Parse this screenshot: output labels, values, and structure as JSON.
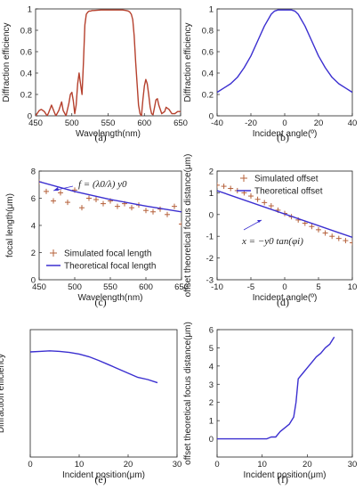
{
  "chart_data": [
    {
      "id": "a",
      "type": "line",
      "panel_label": "(a)",
      "xlabel": "Wavelength(nm)",
      "ylabel": "Diffraction efficiency",
      "xlim": [
        450,
        650
      ],
      "ylim": [
        0,
        1
      ],
      "xticks": [
        450,
        500,
        550,
        600,
        650
      ],
      "yticks": [
        0,
        0.2,
        0.4,
        0.6,
        0.8,
        1
      ],
      "grid": false,
      "series": [
        {
          "color": "#b5402d",
          "x": [
            450,
            455,
            458,
            462,
            466,
            468,
            472,
            476,
            478,
            482,
            486,
            488,
            492,
            496,
            498,
            500,
            502,
            504,
            506,
            508,
            510,
            512,
            514,
            516,
            518,
            520,
            522,
            524,
            526,
            528,
            530,
            540,
            550,
            560,
            570,
            575,
            578,
            580,
            582,
            584,
            586,
            588,
            590,
            592,
            594,
            596,
            598,
            600,
            602,
            604,
            606,
            608,
            610,
            612,
            614,
            616,
            618,
            620,
            624,
            628,
            630,
            634,
            638,
            642,
            646,
            650
          ],
          "y": [
            0,
            0.05,
            0.06,
            0.04,
            0,
            0.03,
            0.1,
            0.03,
            0,
            0.05,
            0.13,
            0.05,
            0,
            0.12,
            0.2,
            0.22,
            0.14,
            0.02,
            0.1,
            0.3,
            0.4,
            0.3,
            0.2,
            0.5,
            0.85,
            0.95,
            0.97,
            0.98,
            0.98,
            0.985,
            0.985,
            0.99,
            0.99,
            0.99,
            0.99,
            0.985,
            0.98,
            0.97,
            0.95,
            0.9,
            0.75,
            0.5,
            0.3,
            0.1,
            0.02,
            0,
            0.15,
            0.28,
            0.34,
            0.3,
            0.2,
            0.08,
            0.02,
            0.01,
            0.08,
            0.15,
            0.16,
            0.1,
            0.02,
            0.04,
            0.08,
            0.06,
            0.02,
            0.02,
            0.04,
            0.04
          ]
        }
      ]
    },
    {
      "id": "b",
      "type": "line",
      "panel_label": "(b)",
      "xlabel": "Incident angle(º)",
      "ylabel": "Diffraction efficiency",
      "xlim": [
        -40,
        40
      ],
      "ylim": [
        0,
        1
      ],
      "xticks": [
        -40,
        -20,
        0,
        20,
        40
      ],
      "yticks": [
        0,
        0.2,
        0.4,
        0.6,
        0.8,
        1
      ],
      "grid": false,
      "series": [
        {
          "color": "#3b2fd0",
          "x": [
            -40,
            -36,
            -32,
            -28,
            -24,
            -20,
            -16,
            -12,
            -8,
            -6,
            -4,
            -2,
            0,
            2,
            4,
            6,
            8,
            12,
            16,
            20,
            24,
            28,
            32,
            36,
            40
          ],
          "y": [
            0.22,
            0.26,
            0.3,
            0.36,
            0.45,
            0.56,
            0.7,
            0.84,
            0.95,
            0.98,
            0.99,
            0.99,
            0.99,
            0.99,
            0.99,
            0.98,
            0.95,
            0.84,
            0.7,
            0.56,
            0.45,
            0.36,
            0.3,
            0.26,
            0.22
          ]
        }
      ]
    },
    {
      "id": "c",
      "type": "line",
      "panel_label": "(c)",
      "xlabel": "Wavelength(nm)",
      "ylabel": "focal length(μm)",
      "xlim": [
        450,
        650
      ],
      "ylim": [
        0,
        8
      ],
      "xticks": [
        450,
        500,
        550,
        600,
        650
      ],
      "yticks": [
        0,
        2,
        4,
        6,
        8
      ],
      "grid": false,
      "annotation": "f = (λ0/λ) y0",
      "legend": {
        "position": "bottom-right"
      },
      "series": [
        {
          "name": "Simulated focal length",
          "kind": "scatter",
          "marker": "+",
          "color": "#b5603a",
          "x": [
            450,
            460,
            470,
            480,
            490,
            500,
            510,
            520,
            530,
            540,
            550,
            560,
            570,
            580,
            590,
            600,
            610,
            620,
            630,
            640,
            650
          ],
          "y": [
            7.2,
            6.5,
            5.8,
            6.4,
            5.7,
            6.6,
            5.3,
            6.0,
            5.9,
            5.6,
            5.8,
            5.4,
            5.6,
            5.3,
            5.5,
            5.1,
            5.0,
            5.2,
            4.8,
            5.4,
            4.1
          ]
        },
        {
          "name": "Theoretical focal length",
          "kind": "line",
          "color": "#3b2fd0",
          "x": [
            450,
            500,
            550,
            600,
            650
          ],
          "y": [
            7.22,
            6.5,
            5.91,
            5.42,
            5.0
          ]
        }
      ]
    },
    {
      "id": "d",
      "type": "line",
      "panel_label": "(d)",
      "xlabel": "Incident angle(º)",
      "ylabel": "offset theoretical focus distance(μm)",
      "xlim": [
        -10,
        10
      ],
      "ylim": [
        -3,
        2
      ],
      "xticks": [
        -10,
        -5,
        0,
        5,
        10
      ],
      "yticks": [
        -3,
        -2,
        -1,
        0,
        1,
        2
      ],
      "grid": false,
      "annotation": "x = −y0 tan(φi)",
      "legend": {
        "position": "top-right"
      },
      "series": [
        {
          "name": "Simulated offset",
          "kind": "scatter",
          "marker": "+",
          "color": "#b5603a",
          "x": [
            -10,
            -9,
            -8,
            -7,
            -6,
            -5,
            -4,
            -3,
            -2,
            -1,
            0,
            1,
            2,
            3,
            4,
            5,
            6,
            7,
            8,
            9,
            10
          ],
          "y": [
            1.35,
            1.3,
            1.2,
            1.1,
            1.0,
            0.85,
            0.7,
            0.55,
            0.4,
            0.2,
            0.05,
            -0.1,
            -0.25,
            -0.4,
            -0.55,
            -0.7,
            -0.85,
            -1.0,
            -1.1,
            -1.2,
            -1.3
          ]
        },
        {
          "name": "Theoretical offset",
          "kind": "line",
          "color": "#3b2fd0",
          "x": [
            -10,
            10
          ],
          "y": [
            1.1,
            -1.05
          ]
        }
      ]
    },
    {
      "id": "e",
      "type": "line",
      "panel_label": "(e)",
      "xlabel": "Incident position(μm)",
      "ylabel": "Diffraction efficiency",
      "xlim": [
        0,
        30
      ],
      "ylim": [
        0,
        1.2
      ],
      "xticks": [
        0,
        10,
        20,
        30
      ],
      "yticks": [],
      "grid": false,
      "series": [
        {
          "color": "#3b2fd0",
          "x": [
            0,
            2,
            4,
            6,
            8,
            10,
            12,
            14,
            16,
            18,
            20,
            22,
            24,
            26
          ],
          "y": [
            0.99,
            0.995,
            1.0,
            0.995,
            0.985,
            0.97,
            0.945,
            0.91,
            0.87,
            0.83,
            0.79,
            0.75,
            0.73,
            0.7
          ]
        }
      ]
    },
    {
      "id": "f",
      "type": "line",
      "panel_label": "(f)",
      "xlabel": "Incident position(μm)",
      "ylabel": "offset theoretical focus distance(μm)",
      "xlim": [
        0,
        30
      ],
      "ylim": [
        -1,
        6
      ],
      "xticks": [
        0,
        10,
        20,
        30
      ],
      "yticks": [
        0,
        1,
        2,
        3,
        4,
        5,
        6
      ],
      "grid": false,
      "series": [
        {
          "color": "#3b2fd0",
          "x": [
            0,
            2,
            4,
            6,
            8,
            10,
            11,
            12,
            13,
            14,
            15,
            16,
            17,
            17.5,
            18,
            19,
            20,
            21,
            22,
            23,
            24,
            25,
            26
          ],
          "y": [
            0,
            0,
            0,
            0,
            0,
            0,
            0,
            0.1,
            0.1,
            0.4,
            0.6,
            0.8,
            1.2,
            2.0,
            3.3,
            3.6,
            3.9,
            4.2,
            4.5,
            4.7,
            5.0,
            5.2,
            5.6
          ]
        }
      ]
    }
  ]
}
